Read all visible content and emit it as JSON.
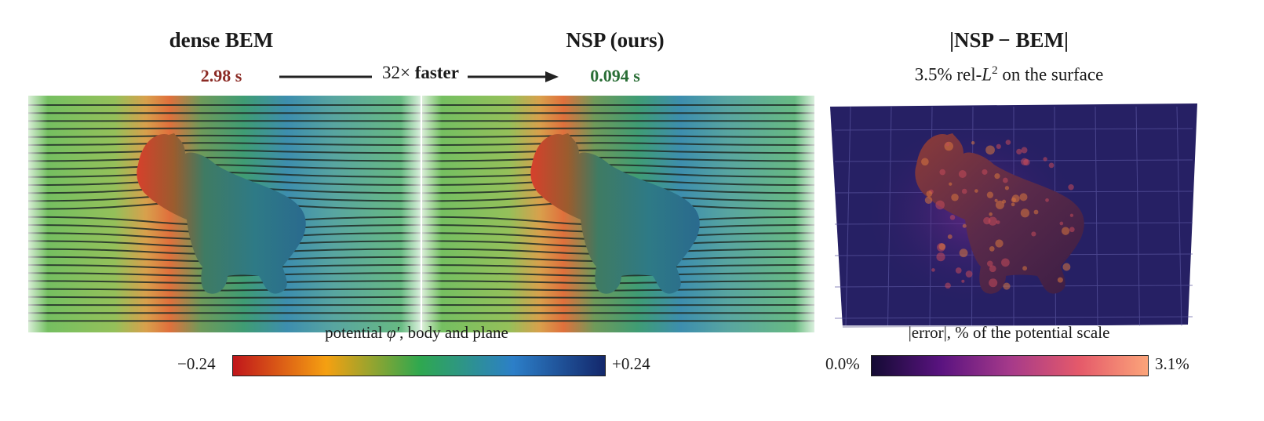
{
  "titles": {
    "left": "dense BEM",
    "middle": "NSP (ours)",
    "right": "|NSP − BEM|"
  },
  "timings": {
    "bem": "2.98 s",
    "nsp": "0.094 s",
    "speedup_factor": "32×",
    "speedup_word": "faster"
  },
  "error_subtitle": {
    "prefix": "3.5% rel-",
    "symbol": "L",
    "exponent": "2",
    "suffix": " on the surface"
  },
  "colorbar_potential": {
    "label_prefix": "potential ",
    "label_symbol": "φ′",
    "label_suffix": ", body and plane",
    "min_label": "−0.24",
    "max_label": "+0.24",
    "colors": [
      "#c0161b",
      "#f5a011",
      "#2fa84f",
      "#2c7fc8",
      "#13266a"
    ]
  },
  "colorbar_error": {
    "label": "|error|, % of the potential scale",
    "min_label": "0.0%",
    "max_label": "3.1%",
    "colors": [
      "#140b34",
      "#5a1380",
      "#a63a8a",
      "#e55a6a",
      "#fca67a"
    ]
  },
  "colors": {
    "bem_time": "#8b2a24",
    "nsp_time": "#2a6e36"
  }
}
